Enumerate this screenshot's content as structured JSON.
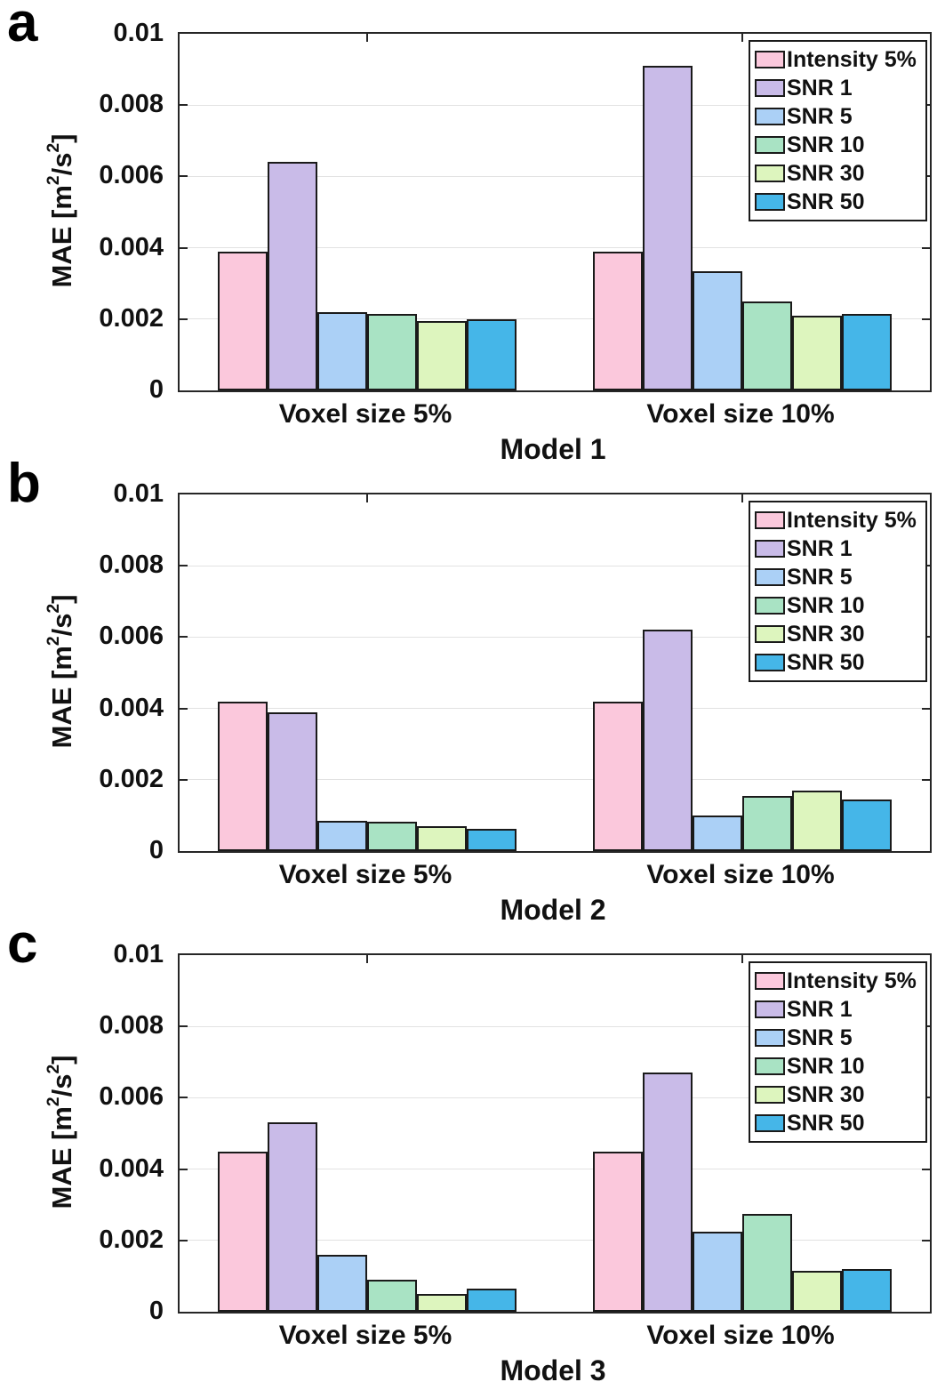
{
  "figure_title": "",
  "axis": {
    "ylabel_rich": [
      [
        "MAE [m",
        false
      ],
      [
        "2",
        true
      ],
      [
        "/s",
        true
      ],
      [
        "2",
        true
      ],
      [
        "]",
        false
      ]
    ],
    "ylabel_plain": "MAE [m2/s2]",
    "yticks": [
      0,
      0.002,
      0.004,
      0.006,
      0.008,
      0.01
    ],
    "ytick_labels": [
      "0",
      "0.002",
      "0.004",
      "0.006",
      "0.008",
      "0.01"
    ],
    "ylim": [
      0,
      0.01
    ]
  },
  "legend": {
    "position": "top-right",
    "entries": [
      {
        "label": "Intensity 5%",
        "color": "#FBC8DC"
      },
      {
        "label": "SNR 1",
        "color": "#C9BBE8"
      },
      {
        "label": "SNR 5",
        "color": "#ABD0F6"
      },
      {
        "label": "SNR 10",
        "color": "#A9E3C4"
      },
      {
        "label": "SNR 30",
        "color": "#DDF5BE"
      },
      {
        "label": "SNR 50",
        "color": "#45B6E8"
      }
    ]
  },
  "chart_data": [
    {
      "type": "bar",
      "panel_letter": "a",
      "title": "Model 1",
      "xlabel": "Model 1",
      "ylabel": "MAE [m2/s2]",
      "ylim": [
        0,
        0.01
      ],
      "grid": true,
      "legend_position": "top-right",
      "categories": [
        "Voxel size 5%",
        "Voxel size 10%"
      ],
      "series": [
        {
          "name": "Intensity 5%",
          "color": "#FBC8DC",
          "values": [
            0.0039,
            0.0039
          ]
        },
        {
          "name": "SNR 1",
          "color": "#C9BBE8",
          "values": [
            0.0064,
            0.0091
          ]
        },
        {
          "name": "SNR 5",
          "color": "#ABD0F6",
          "values": [
            0.0022,
            0.00335
          ]
        },
        {
          "name": "SNR 10",
          "color": "#A9E3C4",
          "values": [
            0.00215,
            0.0025
          ]
        },
        {
          "name": "SNR 30",
          "color": "#DDF5BE",
          "values": [
            0.00195,
            0.0021
          ]
        },
        {
          "name": "SNR 50",
          "color": "#45B6E8",
          "values": [
            0.002,
            0.00215
          ]
        }
      ]
    },
    {
      "type": "bar",
      "panel_letter": "b",
      "title": "Model 2",
      "xlabel": "Model 2",
      "ylabel": "MAE [m2/s2]",
      "ylim": [
        0,
        0.01
      ],
      "grid": true,
      "legend_position": "top-right",
      "categories": [
        "Voxel size 5%",
        "Voxel size 10%"
      ],
      "series": [
        {
          "name": "Intensity 5%",
          "color": "#FBC8DC",
          "values": [
            0.0042,
            0.0042
          ]
        },
        {
          "name": "SNR 1",
          "color": "#C9BBE8",
          "values": [
            0.0039,
            0.0062
          ]
        },
        {
          "name": "SNR 5",
          "color": "#ABD0F6",
          "values": [
            0.00085,
            0.001
          ]
        },
        {
          "name": "SNR 10",
          "color": "#A9E3C4",
          "values": [
            0.00082,
            0.00155
          ]
        },
        {
          "name": "SNR 30",
          "color": "#DDF5BE",
          "values": [
            0.0007,
            0.0017
          ]
        },
        {
          "name": "SNR 50",
          "color": "#45B6E8",
          "values": [
            0.00063,
            0.00145
          ]
        }
      ]
    },
    {
      "type": "bar",
      "panel_letter": "c",
      "title": "Model 3",
      "xlabel": "Model 3",
      "ylabel": "MAE [m2/s2]",
      "ylim": [
        0,
        0.01
      ],
      "grid": true,
      "legend_position": "top-right",
      "categories": [
        "Voxel size 5%",
        "Voxel size 10%"
      ],
      "series": [
        {
          "name": "Intensity 5%",
          "color": "#FBC8DC",
          "values": [
            0.0045,
            0.0045
          ]
        },
        {
          "name": "SNR 1",
          "color": "#C9BBE8",
          "values": [
            0.0053,
            0.0067
          ]
        },
        {
          "name": "SNR 5",
          "color": "#ABD0F6",
          "values": [
            0.0016,
            0.00225
          ]
        },
        {
          "name": "SNR 10",
          "color": "#A9E3C4",
          "values": [
            0.0009,
            0.00275
          ]
        },
        {
          "name": "SNR 30",
          "color": "#DDF5BE",
          "values": [
            0.0005,
            0.00115
          ]
        },
        {
          "name": "SNR 50",
          "color": "#45B6E8",
          "values": [
            0.00065,
            0.0012
          ]
        }
      ]
    }
  ]
}
